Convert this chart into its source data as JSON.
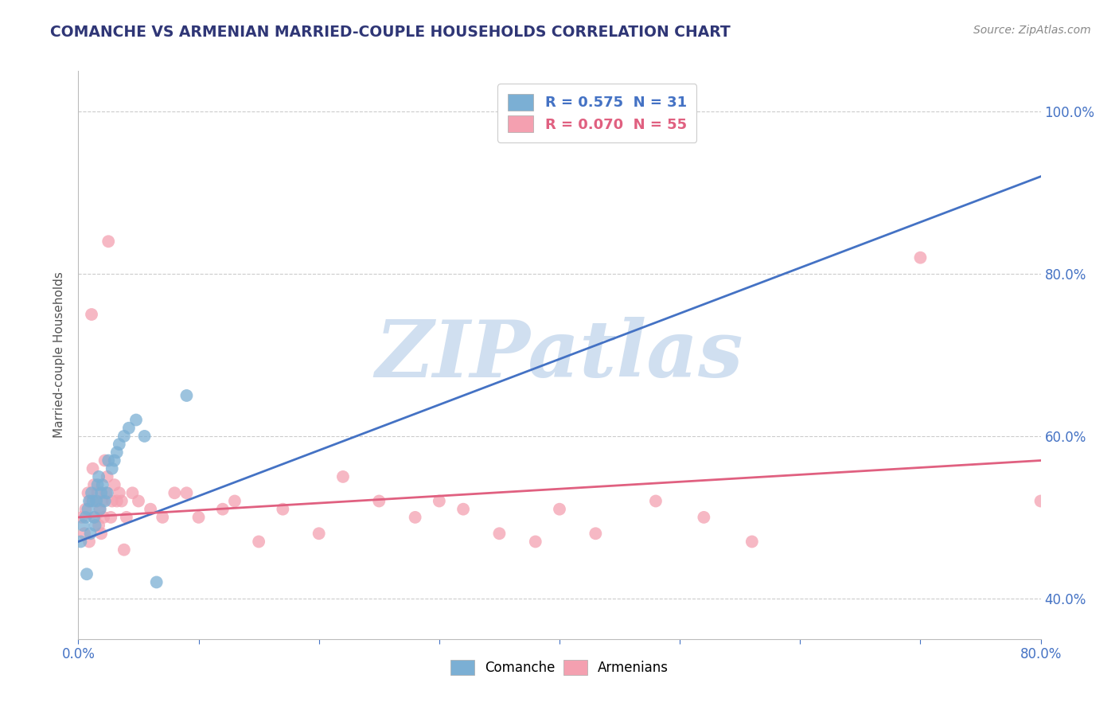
{
  "title": "COMANCHE VS ARMENIAN MARRIED-COUPLE HOUSEHOLDS CORRELATION CHART",
  "source_text": "Source: ZipAtlas.com",
  "ylabel": "Married-couple Households",
  "xlim": [
    0.0,
    0.8
  ],
  "ylim": [
    0.35,
    1.05
  ],
  "yticks": [
    0.4,
    0.6,
    0.8,
    1.0
  ],
  "ytick_labels": [
    "40.0%",
    "60.0%",
    "80.0%",
    "100.0%"
  ],
  "xticks": [
    0.0,
    0.1,
    0.2,
    0.3,
    0.4,
    0.5,
    0.6,
    0.7,
    0.8
  ],
  "comanche_R": 0.575,
  "comanche_N": 31,
  "armenian_R": 0.07,
  "armenian_N": 55,
  "comanche_color": "#7BAFD4",
  "armenian_color": "#F4A0B0",
  "comanche_line_color": "#4472C4",
  "armenian_line_color": "#E06080",
  "background_color": "#FFFFFF",
  "grid_color": "#CCCCCC",
  "title_color": "#2F3676",
  "watermark_color": "#D0DFF0",
  "comanche_x": [
    0.002,
    0.004,
    0.006,
    0.007,
    0.008,
    0.009,
    0.01,
    0.011,
    0.012,
    0.013,
    0.014,
    0.015,
    0.016,
    0.017,
    0.018,
    0.019,
    0.02,
    0.022,
    0.024,
    0.025,
    0.028,
    0.03,
    0.032,
    0.034,
    0.038,
    0.042,
    0.048,
    0.055,
    0.065,
    0.09,
    0.38
  ],
  "comanche_y": [
    0.47,
    0.49,
    0.5,
    0.43,
    0.51,
    0.52,
    0.48,
    0.53,
    0.52,
    0.5,
    0.49,
    0.52,
    0.54,
    0.55,
    0.51,
    0.53,
    0.54,
    0.52,
    0.53,
    0.57,
    0.56,
    0.57,
    0.58,
    0.59,
    0.6,
    0.61,
    0.62,
    0.6,
    0.42,
    0.65,
    1.0
  ],
  "armenian_x": [
    0.003,
    0.005,
    0.006,
    0.008,
    0.009,
    0.01,
    0.011,
    0.012,
    0.013,
    0.014,
    0.015,
    0.016,
    0.017,
    0.018,
    0.019,
    0.02,
    0.021,
    0.022,
    0.023,
    0.024,
    0.025,
    0.027,
    0.028,
    0.03,
    0.032,
    0.034,
    0.036,
    0.038,
    0.04,
    0.045,
    0.05,
    0.06,
    0.07,
    0.08,
    0.09,
    0.1,
    0.12,
    0.13,
    0.15,
    0.17,
    0.2,
    0.22,
    0.25,
    0.28,
    0.3,
    0.32,
    0.35,
    0.38,
    0.4,
    0.43,
    0.48,
    0.52,
    0.56,
    0.7,
    0.8
  ],
  "armenian_y": [
    0.5,
    0.48,
    0.51,
    0.53,
    0.47,
    0.52,
    0.75,
    0.56,
    0.54,
    0.5,
    0.52,
    0.53,
    0.49,
    0.51,
    0.48,
    0.52,
    0.5,
    0.57,
    0.53,
    0.55,
    0.84,
    0.5,
    0.52,
    0.54,
    0.52,
    0.53,
    0.52,
    0.46,
    0.5,
    0.53,
    0.52,
    0.51,
    0.5,
    0.53,
    0.53,
    0.5,
    0.51,
    0.52,
    0.47,
    0.51,
    0.48,
    0.55,
    0.52,
    0.5,
    0.52,
    0.51,
    0.48,
    0.47,
    0.51,
    0.48,
    0.52,
    0.5,
    0.47,
    0.82,
    0.52
  ],
  "comanche_trend": [
    0.0,
    0.8
  ],
  "comanche_trend_y": [
    0.47,
    0.92
  ],
  "armenian_trend": [
    0.0,
    0.8
  ],
  "armenian_trend_y": [
    0.5,
    0.57
  ]
}
